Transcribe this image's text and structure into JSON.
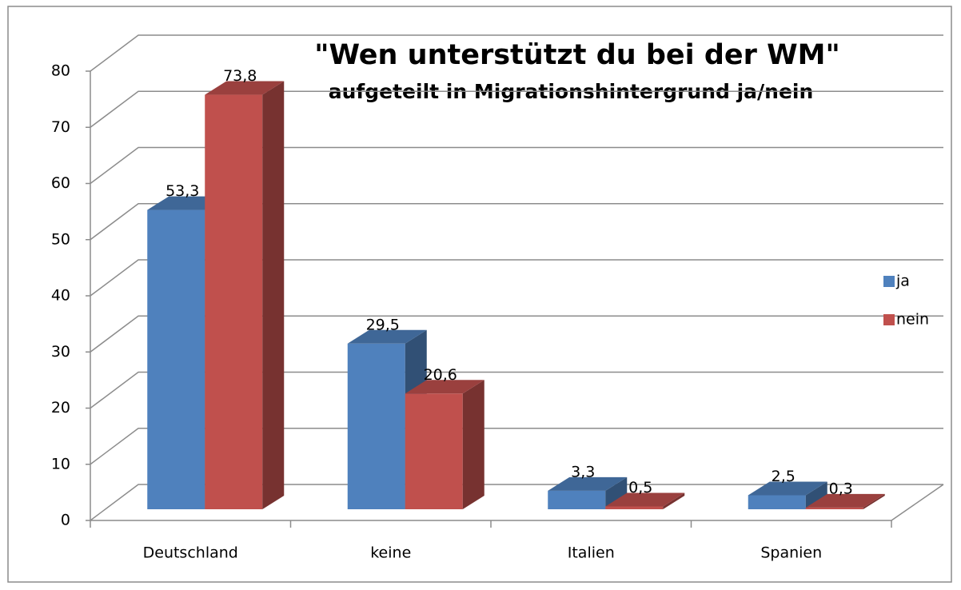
{
  "chart_data": {
    "type": "bar3d",
    "title": "\"Wen unterstützt du bei der WM\"",
    "subtitle": "aufgeteilt in Migrationshintergrund ja/nein",
    "categories": [
      "Deutschland",
      "keine",
      "Italien",
      "Spanien"
    ],
    "series": [
      {
        "name": "ja",
        "color": "#4f81bd",
        "values": [
          53.3,
          29.5,
          3.3,
          2.5
        ],
        "value_labels": [
          "53,3",
          "29,5",
          "3,3",
          "2,5"
        ]
      },
      {
        "name": "nein",
        "color": "#c0504d",
        "values": [
          73.8,
          20.6,
          0.5,
          0.3
        ],
        "value_labels": [
          "73,8",
          "20,6",
          "0,5",
          "0,3"
        ]
      }
    ],
    "ylim": [
      0,
      80
    ],
    "yticks": [
      0,
      10,
      20,
      30,
      40,
      50,
      60,
      70,
      80
    ],
    "grid": true,
    "legend": "right"
  }
}
